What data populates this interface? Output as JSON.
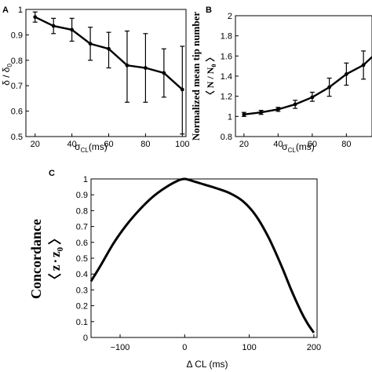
{
  "chart_data": [
    {
      "panel": "A",
      "type": "line",
      "x": [
        20,
        30,
        40,
        50,
        60,
        70,
        80,
        90,
        100
      ],
      "y": [
        0.97,
        0.935,
        0.92,
        0.865,
        0.845,
        0.78,
        0.77,
        0.75,
        0.685
      ],
      "yerr_low": [
        0.95,
        0.905,
        0.875,
        0.8,
        0.77,
        0.635,
        0.635,
        0.655,
        0.51
      ],
      "yerr_high": [
        0.99,
        0.965,
        0.965,
        0.93,
        0.91,
        0.915,
        0.905,
        0.845,
        0.855
      ],
      "xlabel": "σ",
      "xlabel_sub": "CL",
      "xlabel_unit": "(ms)",
      "ylabel": "δ / δ",
      "ylabel_sub": "0",
      "xlim": [
        15,
        102
      ],
      "ylim": [
        0.5,
        1.0
      ],
      "xticks": [
        "20",
        "40",
        "60",
        "80",
        "100"
      ],
      "yticks": [
        "0.5",
        "0.6",
        "0.7",
        "0.8",
        "0.9",
        "1"
      ]
    },
    {
      "panel": "B",
      "type": "line",
      "x": [
        20,
        30,
        40,
        50,
        60,
        70,
        80,
        90
      ],
      "y": [
        1.02,
        1.04,
        1.07,
        1.12,
        1.19,
        1.29,
        1.42,
        1.51
      ],
      "yerr_low": [
        1.0,
        1.02,
        1.05,
        1.08,
        1.15,
        1.2,
        1.31,
        1.37
      ],
      "yerr_high": [
        1.04,
        1.06,
        1.09,
        1.16,
        1.24,
        1.38,
        1.53,
        1.65
      ],
      "x_line_end": 95,
      "y_line_end": 1.59,
      "xlabel": "σ",
      "xlabel_sub": "CL",
      "xlabel_unit": "(ms)",
      "ylabel": "Normalized mean tip number",
      "ylabel2": "〈 N / N",
      "ylabel2_sub": "0",
      "ylabel2_end": " 〉",
      "xlim": [
        15,
        95
      ],
      "ylim": [
        0.8,
        2.0
      ],
      "xticks": [
        "20",
        "40",
        "60",
        "80"
      ],
      "yticks": [
        "0.8",
        "1",
        "1.2",
        "1.4",
        "1.6",
        "1.8",
        "2"
      ]
    },
    {
      "panel": "C",
      "type": "line",
      "x": [
        -145,
        -130,
        -110,
        -90,
        -70,
        -50,
        -30,
        -10,
        0,
        10,
        30,
        50,
        70,
        90,
        110,
        130,
        150,
        165,
        180,
        190,
        200
      ],
      "y": [
        0.355,
        0.455,
        0.595,
        0.71,
        0.805,
        0.885,
        0.945,
        0.99,
        1.0,
        0.99,
        0.965,
        0.94,
        0.91,
        0.86,
        0.77,
        0.63,
        0.45,
        0.3,
        0.165,
        0.09,
        0.03
      ],
      "xlabel": "Δ CL (ms)",
      "ylabel": "Concordance",
      "ylabel2_lhs": "〈",
      "ylabel2_z": "z",
      "ylabel2_dot": "·",
      "ylabel2_z0": "z",
      "ylabel2_sub": "0",
      "ylabel2_rhs": "〉",
      "xlim": [
        -145,
        205
      ],
      "ylim": [
        0,
        1
      ],
      "xticks": [
        "-100",
        "0",
        "100",
        "200"
      ],
      "yticks": [
        "0",
        "0.1",
        "0.2",
        "0.3",
        "0.4",
        "0.5",
        "0.6",
        "0.7",
        "0.8",
        "0.9",
        "1"
      ]
    }
  ]
}
